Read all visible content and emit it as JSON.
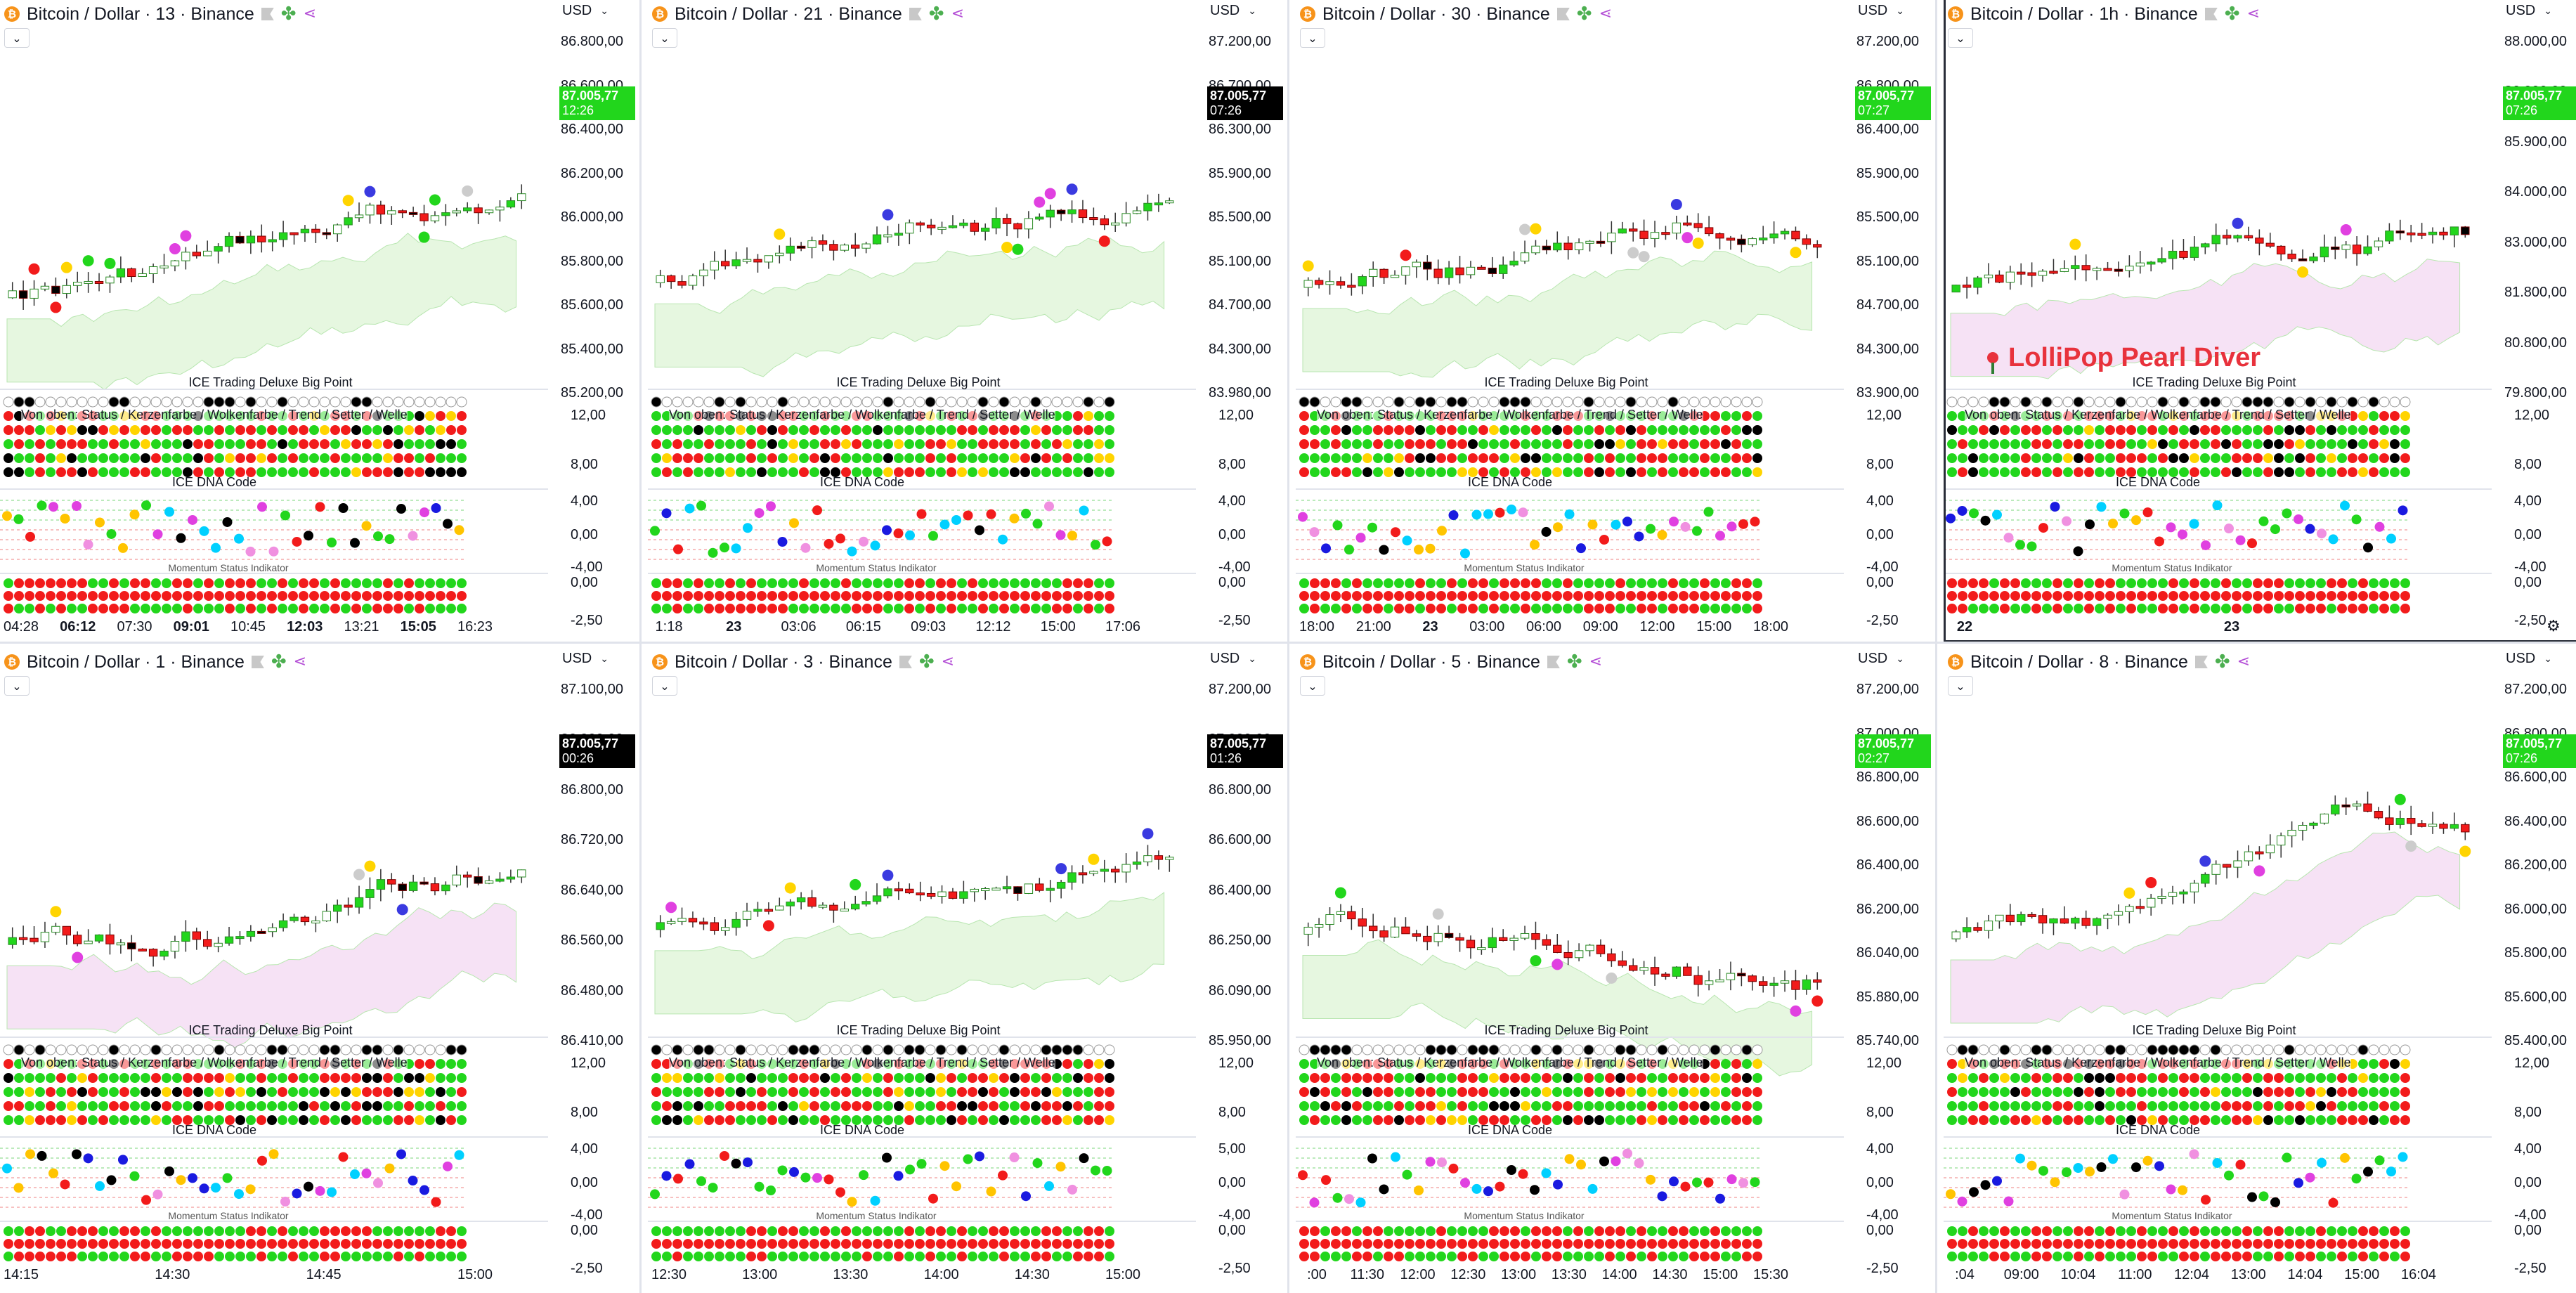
{
  "indicators": {
    "bigpoint_title": "ICE Trading Deluxe Big Point",
    "bigpoint_sub": "Von oben: Status / Kerzenfarbe / Wolkenfarbe / Trend / Setter / Welle",
    "dna_title": "ICE DNA Code",
    "momentum_title": "Momentum Status Indikator"
  },
  "overlay": {
    "label": "LolliPop Pearl Diver"
  },
  "colors": {
    "up_candle": "#ffffff",
    "down_candle": "#f21b1b",
    "strong_up": "#22d61c",
    "black_candle": "#000000",
    "cloud": "#e6f7e0",
    "cloud_pink": "#f6e2f5",
    "dot_green": "#22d61c",
    "dot_red": "#f21b1b",
    "dot_black": "#000000",
    "dot_yellow": "#ffd400",
    "price_green": "#22d61c"
  },
  "panels": [
    {
      "title": "Bitcoin / Dollar · 13 · Binance",
      "currency": "USD",
      "price_label": {
        "value": "87.005,77",
        "time": "12:26",
        "style": "green"
      },
      "yticks": [
        "86.800,00",
        "86.600,00",
        "86.400,00",
        "86.200,00",
        "86.000,00",
        "85.800,00",
        "85.600,00",
        "85.400,00",
        "85.200,00"
      ],
      "ind_yticks": [
        "12,00",
        "8,00",
        "4,00",
        "0,00",
        "-4,00",
        "0,00",
        "-2,50"
      ],
      "xticks": [
        {
          "t": "04:28",
          "b": false
        },
        {
          "t": "06:12",
          "b": true
        },
        {
          "t": "07:30",
          "b": false
        },
        {
          "t": "09:01",
          "b": true
        },
        {
          "t": "10:45",
          "b": false
        },
        {
          "t": "12:03",
          "b": true
        },
        {
          "t": "13:21",
          "b": false
        },
        {
          "t": "15:05",
          "b": true
        },
        {
          "t": "16:23",
          "b": false
        }
      ],
      "cloud": "green"
    },
    {
      "title": "Bitcoin / Dollar · 21 · Binance",
      "currency": "USD",
      "price_label": {
        "value": "87.005,77",
        "time": "07:26",
        "style": "black"
      },
      "yticks": [
        "87.200,00",
        "86.700,00",
        "86.300,00",
        "85.900,00",
        "85.500,00",
        "85.100,00",
        "84.700,00",
        "84.300,00",
        "83.980,00"
      ],
      "ind_yticks": [
        "12,00",
        "8,00",
        "4,00",
        "0,00",
        "-4,00",
        "0,00",
        "-2,50"
      ],
      "xticks": [
        {
          "t": "1:18",
          "b": false
        },
        {
          "t": "23",
          "b": true
        },
        {
          "t": "03:06",
          "b": false
        },
        {
          "t": "06:15",
          "b": false
        },
        {
          "t": "09:03",
          "b": false
        },
        {
          "t": "12:12",
          "b": false
        },
        {
          "t": "15:00",
          "b": false
        },
        {
          "t": "17:06",
          "b": false
        }
      ],
      "cloud": "green"
    },
    {
      "title": "Bitcoin / Dollar · 30 · Binance",
      "currency": "USD",
      "price_label": {
        "value": "87.005,77",
        "time": "07:27",
        "style": "green"
      },
      "yticks": [
        "87.200,00",
        "86.800,00",
        "86.400,00",
        "85.900,00",
        "85.500,00",
        "85.100,00",
        "84.700,00",
        "84.300,00",
        "83.900,00"
      ],
      "ind_yticks": [
        "12,00",
        "8,00",
        "4,00",
        "0,00",
        "-4,00",
        "0,00",
        "-2,50"
      ],
      "xticks": [
        {
          "t": "18:00",
          "b": false
        },
        {
          "t": "21:00",
          "b": false
        },
        {
          "t": "23",
          "b": true
        },
        {
          "t": "03:00",
          "b": false
        },
        {
          "t": "06:00",
          "b": false
        },
        {
          "t": "09:00",
          "b": false
        },
        {
          "t": "12:00",
          "b": false
        },
        {
          "t": "15:00",
          "b": false
        },
        {
          "t": "18:00",
          "b": false
        }
      ],
      "cloud": "green"
    },
    {
      "title": "Bitcoin / Dollar · 1h · Binance",
      "currency": "USD",
      "price_label": {
        "value": "87.005,77",
        "time": "07:26",
        "style": "green"
      },
      "yticks": [
        "88.000,00",
        "86.000,00",
        "85.900,00",
        "84.000,00",
        "83.000,00",
        "81.800,00",
        "80.800,00",
        "79.800,00"
      ],
      "ind_yticks": [
        "12,00",
        "8,00",
        "4,00",
        "0,00",
        "-4,00",
        "0,00",
        "-2,50"
      ],
      "xticks": [
        {
          "t": "22",
          "b": true
        },
        {
          "t": "23",
          "b": true
        }
      ],
      "cloud": "pink"
    },
    {
      "title": "Bitcoin / Dollar · 1 · Binance",
      "currency": "USD",
      "price_label": {
        "value": "87.005,77",
        "time": "00:26",
        "style": "black"
      },
      "yticks": [
        "87.100,00",
        "86.900,00",
        "86.800,00",
        "86.720,00",
        "86.640,00",
        "86.560,00",
        "86.480,00",
        "86.410,00"
      ],
      "ind_yticks": [
        "12,00",
        "8,00",
        "4,00",
        "0,00",
        "-4,00",
        "0,00",
        "-2,50"
      ],
      "xticks": [
        {
          "t": "14:15",
          "b": false
        },
        {
          "t": "14:30",
          "b": false
        },
        {
          "t": "14:45",
          "b": false
        },
        {
          "t": "15:00",
          "b": false
        }
      ],
      "cloud": "pink"
    },
    {
      "title": "Bitcoin / Dollar · 3 · Binance",
      "currency": "USD",
      "price_label": {
        "value": "87.005,77",
        "time": "01:26",
        "style": "black"
      },
      "yticks": [
        "87.200,00",
        "87.000,00",
        "86.800,00",
        "86.600,00",
        "86.400,00",
        "86.250,00",
        "86.090,00",
        "85.950,00"
      ],
      "ind_yticks": [
        "12,00",
        "8,00",
        "5,00",
        "0,00",
        "-4,00",
        "0,00",
        "-2,50"
      ],
      "xticks": [
        {
          "t": "12:30",
          "b": false
        },
        {
          "t": "13:00",
          "b": false
        },
        {
          "t": "13:30",
          "b": false
        },
        {
          "t": "14:00",
          "b": false
        },
        {
          "t": "14:30",
          "b": false
        },
        {
          "t": "15:00",
          "b": false
        }
      ],
      "cloud": "green"
    },
    {
      "title": "Bitcoin / Dollar · 5 · Binance",
      "currency": "USD",
      "price_label": {
        "value": "87.005,77",
        "time": "02:27",
        "style": "green"
      },
      "yticks": [
        "87.200,00",
        "87.000,00",
        "86.800,00",
        "86.600,00",
        "86.400,00",
        "86.200,00",
        "86.040,00",
        "85.880,00",
        "85.740,00"
      ],
      "ind_yticks": [
        "12,00",
        "8,00",
        "4,00",
        "0,00",
        "-4,00",
        "0,00",
        "-2,50"
      ],
      "xticks": [
        {
          "t": ":00",
          "b": false
        },
        {
          "t": "11:30",
          "b": false
        },
        {
          "t": "12:00",
          "b": false
        },
        {
          "t": "12:30",
          "b": false
        },
        {
          "t": "13:00",
          "b": false
        },
        {
          "t": "13:30",
          "b": false
        },
        {
          "t": "14:00",
          "b": false
        },
        {
          "t": "14:30",
          "b": false
        },
        {
          "t": "15:00",
          "b": false
        },
        {
          "t": "15:30",
          "b": false
        }
      ],
      "cloud": "green"
    },
    {
      "title": "Bitcoin / Dollar · 8 · Binance",
      "currency": "USD",
      "price_label": {
        "value": "87.005,77",
        "time": "07:26",
        "style": "green"
      },
      "yticks": [
        "87.200,00",
        "86.800,00",
        "86.600,00",
        "86.400,00",
        "86.200,00",
        "86.000,00",
        "85.800,00",
        "85.600,00",
        "85.400,00"
      ],
      "ind_yticks": [
        "12,00",
        "8,00",
        "4,00",
        "0,00",
        "-4,00",
        "0,00",
        "-2,50"
      ],
      "xticks": [
        {
          "t": ":04",
          "b": false
        },
        {
          "t": "09:00",
          "b": false
        },
        {
          "t": "10:04",
          "b": false
        },
        {
          "t": "11:00",
          "b": false
        },
        {
          "t": "12:04",
          "b": false
        },
        {
          "t": "13:00",
          "b": false
        },
        {
          "t": "14:04",
          "b": false
        },
        {
          "t": "15:00",
          "b": false
        },
        {
          "t": "16:04",
          "b": false
        }
      ],
      "cloud": "pink"
    }
  ]
}
